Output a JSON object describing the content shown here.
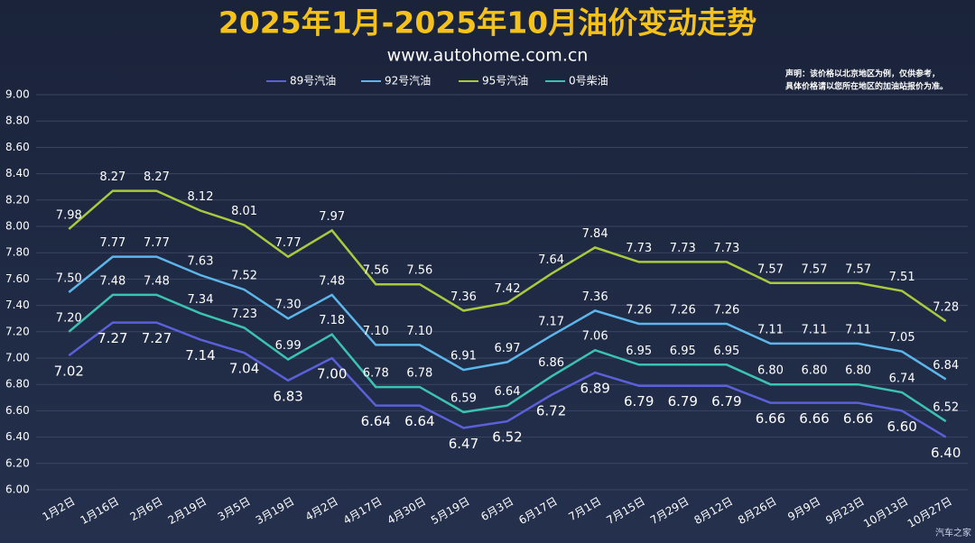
{
  "chart_data": {
    "type": "line",
    "title": "2025年1月-2025年10月油价变动走势",
    "subtitle": "www.autohome.com.cn",
    "notes": [
      "声明：该价格以北京地区为例，仅供参考，",
      "具体价格请以您所在地区的加油站报价为准。"
    ],
    "watermark": "汽车之家",
    "categories": [
      "1月2日",
      "1月16日",
      "2月6日",
      "2月19日",
      "3月5日",
      "3月19日",
      "4月2日",
      "4月17日",
      "4月30日",
      "5月19日",
      "6月3日",
      "6月17日",
      "7月1日",
      "7月15日",
      "7月29日",
      "8月12日",
      "8月26日",
      "9月9日",
      "9月23日",
      "10月13日",
      "10月27日"
    ],
    "series": [
      {
        "name": "89号汽油",
        "color": "#5b5fd8",
        "label_side": "below",
        "values": [
          7.02,
          7.27,
          7.27,
          7.14,
          7.04,
          6.83,
          7.0,
          6.64,
          6.64,
          6.47,
          6.52,
          6.72,
          6.89,
          6.79,
          6.79,
          6.79,
          6.66,
          6.66,
          6.66,
          6.6,
          6.4
        ],
        "value_labels": [
          "7.02",
          "7.27",
          "7.27",
          "7.14",
          "7.04",
          "6.83",
          "7.00",
          "6.64",
          "6.64",
          "6.47",
          "6.52",
          "6.72",
          "6.89",
          "6.79",
          "6.79",
          "6.79",
          "6.66",
          "6.66",
          "6.66",
          "6.60",
          "6.40"
        ]
      },
      {
        "name": "92号汽油",
        "color": "#5cb6ea",
        "label_side": "above",
        "values": [
          7.5,
          7.77,
          7.77,
          7.63,
          7.52,
          7.3,
          7.48,
          7.1,
          7.1,
          6.91,
          6.97,
          7.17,
          7.36,
          7.26,
          7.26,
          7.26,
          7.11,
          7.11,
          7.11,
          7.05,
          6.84
        ],
        "value_labels": [
          "7.50",
          "7.77",
          "7.77",
          "7.63",
          "7.52",
          "7.30",
          "7.48",
          "7.10",
          "7.10",
          "6.91",
          "6.97",
          "7.17",
          "7.36",
          "7.26",
          "7.26",
          "7.26",
          "7.11",
          "7.11",
          "7.11",
          "7.05",
          "6.84"
        ]
      },
      {
        "name": "95号汽油",
        "color": "#a9c93e",
        "label_side": "above",
        "values": [
          7.98,
          8.27,
          8.27,
          8.12,
          8.01,
          7.77,
          7.97,
          7.56,
          7.56,
          7.36,
          7.42,
          7.64,
          7.84,
          7.73,
          7.73,
          7.73,
          7.57,
          7.57,
          7.57,
          7.51,
          7.28
        ],
        "value_labels": [
          "7.98",
          "8.27",
          "8.27",
          "8.12",
          "8.01",
          "7.77",
          "7.97",
          "7.56",
          "7.56",
          "7.36",
          "7.42",
          "7.64",
          "7.84",
          "7.73",
          "7.73",
          "7.73",
          "7.57",
          "7.57",
          "7.57",
          "7.51",
          "7.28"
        ]
      },
      {
        "name": "0号柴油",
        "color": "#3cc2b0",
        "label_side": "above",
        "values": [
          7.2,
          7.48,
          7.48,
          7.34,
          7.23,
          6.99,
          7.18,
          6.78,
          6.78,
          6.59,
          6.64,
          6.86,
          7.06,
          6.95,
          6.95,
          6.95,
          6.8,
          6.8,
          6.8,
          6.74,
          6.52
        ],
        "value_labels": [
          "7.20",
          "7.48",
          "7.48",
          "7.34",
          "7.23",
          "6.99",
          "7.18",
          "6.78",
          "6.78",
          "6.59",
          "6.64",
          "6.86",
          "7.06",
          "6.95",
          "6.95",
          "6.95",
          "6.80",
          "6.80",
          "6.80",
          "6.74",
          "6.52"
        ]
      }
    ],
    "ylim": [
      6,
      9
    ],
    "yticks": [
      {
        "value": 6,
        "label": "6.00"
      },
      {
        "value": 6.2,
        "label": "6.20"
      },
      {
        "value": 6.4,
        "label": "6.40"
      },
      {
        "value": 6.6,
        "label": "6.60"
      },
      {
        "value": 6.8,
        "label": "6.80"
      },
      {
        "value": 7,
        "label": "7.00"
      },
      {
        "value": 7.2,
        "label": "7.20"
      },
      {
        "value": 7.4,
        "label": "7.40"
      },
      {
        "value": 7.6,
        "label": "7.60"
      },
      {
        "value": 7.8,
        "label": "7.80"
      },
      {
        "value": 8,
        "label": "8.00"
      },
      {
        "value": 8.2,
        "label": "8.20"
      },
      {
        "value": 8.4,
        "label": "8.40"
      },
      {
        "value": 8.6,
        "label": "8.60"
      },
      {
        "value": 8.8,
        "label": "8.80"
      },
      {
        "value": 9,
        "label": "9.00"
      }
    ],
    "grid": true
  }
}
